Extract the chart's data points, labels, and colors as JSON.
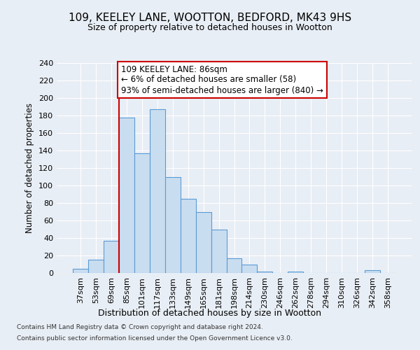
{
  "title1": "109, KEELEY LANE, WOOTTON, BEDFORD, MK43 9HS",
  "title2": "Size of property relative to detached houses in Wootton",
  "xlabel": "Distribution of detached houses by size in Wootton",
  "ylabel": "Number of detached properties",
  "categories": [
    "37sqm",
    "53sqm",
    "69sqm",
    "85sqm",
    "101sqm",
    "117sqm",
    "133sqm",
    "149sqm",
    "165sqm",
    "181sqm",
    "198sqm",
    "214sqm",
    "230sqm",
    "246sqm",
    "262sqm",
    "278sqm",
    "294sqm",
    "310sqm",
    "326sqm",
    "342sqm",
    "358sqm"
  ],
  "values": [
    5,
    15,
    37,
    178,
    137,
    187,
    110,
    85,
    70,
    50,
    17,
    10,
    2,
    0,
    2,
    0,
    0,
    0,
    0,
    3,
    0
  ],
  "bar_color": "#c9ddf0",
  "bar_edge_color": "#5b9bd5",
  "annotation_text_line1": "109 KEELEY LANE: 86sqm",
  "annotation_text_line2": "← 6% of detached houses are smaller (58)",
  "annotation_text_line3": "93% of semi-detached houses are larger (840) →",
  "annotation_box_facecolor": "#ffffff",
  "annotation_box_edgecolor": "#cc0000",
  "red_line_color": "#cc0000",
  "footer1": "Contains HM Land Registry data © Crown copyright and database right 2024.",
  "footer2": "Contains public sector information licensed under the Open Government Licence v3.0.",
  "ylim": [
    0,
    240
  ],
  "yticks": [
    0,
    20,
    40,
    60,
    80,
    100,
    120,
    140,
    160,
    180,
    200,
    220,
    240
  ],
  "background_color": "#e8eef5",
  "grid_color": "#ffffff",
  "red_line_bar_index": 3
}
